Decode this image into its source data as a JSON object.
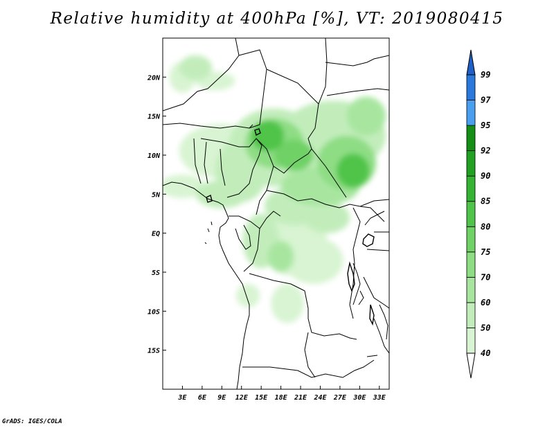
{
  "title": "Relative humidity at 400hPa [%], VT: 2019080415",
  "credit": "GrADS: IGES/COLA",
  "map": {
    "lat_labels": [
      "20N",
      "15N",
      "10N",
      "5N",
      "EQ",
      "5S",
      "10S",
      "15S"
    ],
    "lat_values": [
      20,
      15,
      10,
      5,
      0,
      -5,
      -10,
      -15
    ],
    "lon_labels": [
      "3E",
      "6E",
      "9E",
      "12E",
      "15E",
      "18E",
      "21E",
      "24E",
      "27E",
      "30E",
      "33E"
    ],
    "lon_values": [
      3,
      6,
      9,
      12,
      15,
      18,
      21,
      24,
      27,
      30,
      33
    ],
    "lon_range": [
      0,
      34.5
    ],
    "lat_range": [
      -20,
      25
    ]
  },
  "colorbar": {
    "labels": [
      "40",
      "50",
      "60",
      "70",
      "75",
      "80",
      "85",
      "90",
      "92",
      "95",
      "97",
      "99"
    ],
    "colors": [
      "#eefaea",
      "#d8f4d2",
      "#c2edbb",
      "#a8e6a0",
      "#8edd84",
      "#70d166",
      "#50c44a",
      "#35b332",
      "#22a022",
      "#158e15",
      "#4a9ef0",
      "#2a78dc",
      "#1e5fc8"
    ]
  },
  "humidity_regions": [
    {
      "lon": 5,
      "lat": 21.2,
      "rx": 2.5,
      "ry": 1.6,
      "level": 2
    },
    {
      "lon": 8,
      "lat": 19.5,
      "rx": 3.0,
      "ry": 1.2,
      "level": 1
    },
    {
      "lon": 3,
      "lat": 20.0,
      "rx": 2.0,
      "ry": 2.0,
      "level": 1
    },
    {
      "lon": 9,
      "lat": 10.5,
      "rx": 6.5,
      "ry": 3.5,
      "level": 1
    },
    {
      "lon": 12,
      "lat": 8.0,
      "rx": 4.0,
      "ry": 4.0,
      "level": 2
    },
    {
      "lon": 3,
      "lat": 6.0,
      "rx": 3.5,
      "ry": 1.5,
      "level": 1
    },
    {
      "lon": 9,
      "lat": 5.0,
      "rx": 4.0,
      "ry": 1.8,
      "level": 2
    },
    {
      "lon": 17,
      "lat": 11.0,
      "rx": 7.0,
      "ry": 5.0,
      "level": 2
    },
    {
      "lon": 17,
      "lat": 11.5,
      "rx": 4.5,
      "ry": 3.2,
      "level": 4
    },
    {
      "lon": 16,
      "lat": 12.5,
      "rx": 2.5,
      "ry": 2.0,
      "level": 6
    },
    {
      "lon": 20,
      "lat": 10.0,
      "rx": 3.0,
      "ry": 2.0,
      "level": 5
    },
    {
      "lon": 26,
      "lat": 12.5,
      "rx": 8.0,
      "ry": 4.5,
      "level": 2
    },
    {
      "lon": 28,
      "lat": 9.0,
      "rx": 4.5,
      "ry": 3.5,
      "level": 4
    },
    {
      "lon": 29,
      "lat": 8.0,
      "rx": 2.5,
      "ry": 2.2,
      "level": 6
    },
    {
      "lon": 31,
      "lat": 15.0,
      "rx": 3.0,
      "ry": 2.5,
      "level": 3
    },
    {
      "lon": 24,
      "lat": 6.0,
      "rx": 6.0,
      "ry": 2.5,
      "level": 3
    },
    {
      "lon": 20,
      "lat": 3.5,
      "rx": 4.5,
      "ry": 2.5,
      "level": 2
    },
    {
      "lon": 20,
      "lat": -1.0,
      "rx": 5.0,
      "ry": 4.5,
      "level": 1
    },
    {
      "lon": 15,
      "lat": -1.0,
      "rx": 2.8,
      "ry": 3.5,
      "level": 2
    },
    {
      "lon": 18,
      "lat": -3.0,
      "rx": 2.0,
      "ry": 2.0,
      "level": 3
    },
    {
      "lon": 23,
      "lat": -3.5,
      "rx": 4.5,
      "ry": 3.0,
      "level": 1
    },
    {
      "lon": 19,
      "lat": -9.0,
      "rx": 2.5,
      "ry": 2.5,
      "level": 1
    },
    {
      "lon": 13,
      "lat": -8.0,
      "rx": 1.8,
      "ry": 1.5,
      "level": 1
    },
    {
      "lon": 25,
      "lat": 2.0,
      "rx": 3.5,
      "ry": 2.0,
      "level": 2
    }
  ]
}
